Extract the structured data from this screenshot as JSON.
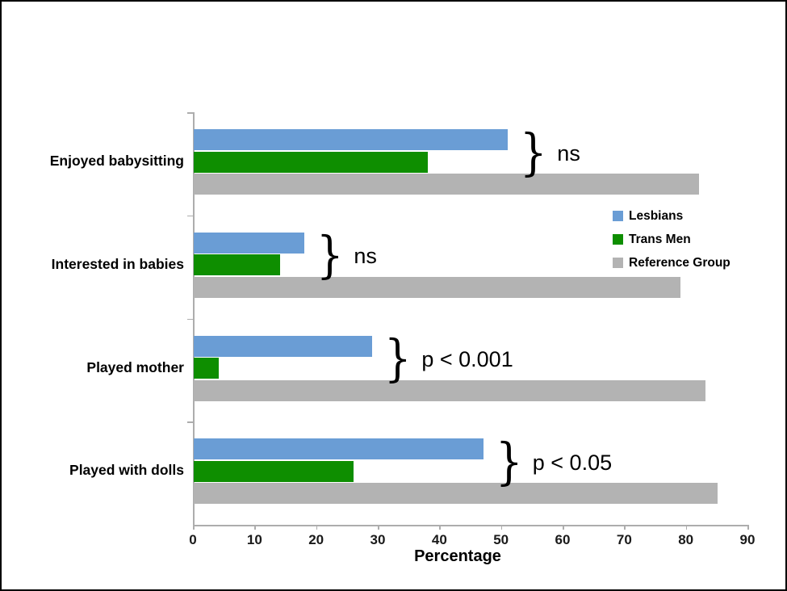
{
  "page": {
    "background": "#ffffff",
    "frame_border_color": "#000000",
    "axis_color": "#adadad",
    "text_color": "#000000"
  },
  "chart_data": {
    "type": "bar",
    "orientation": "horizontal",
    "title": "",
    "xlabel": "Percentage",
    "xlim": [
      0,
      90
    ],
    "xticks": [
      0,
      10,
      20,
      30,
      40,
      50,
      60,
      70,
      80,
      90
    ],
    "grid": false,
    "legend_position": "upper-right",
    "categories": [
      "Enjoyed babysitting",
      "Interested in babies",
      "Played mother",
      "Played with dolls"
    ],
    "series": [
      {
        "name": "Lesbians",
        "color": "#6a9dd5",
        "values": [
          51,
          18,
          29,
          47
        ]
      },
      {
        "name": "Trans Men",
        "color": "#0e8e00",
        "values": [
          38,
          14,
          4,
          26
        ]
      },
      {
        "name": "Reference Group",
        "color": "#b3b3b3",
        "values": [
          82,
          79,
          83,
          85
        ]
      }
    ],
    "annotations": [
      "ns",
      "ns",
      "p < 0.001",
      "p < 0.05"
    ],
    "annotation_symbol": "}"
  }
}
